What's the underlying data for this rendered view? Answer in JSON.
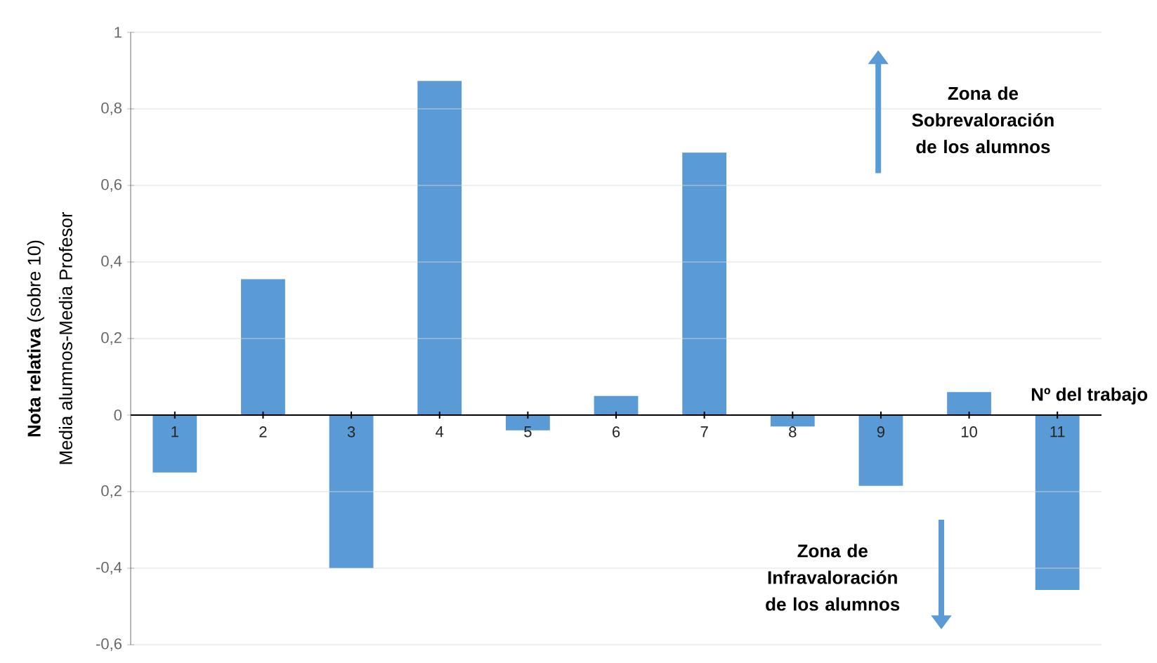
{
  "chart_data": {
    "type": "bar",
    "categories": [
      "1",
      "2",
      "3",
      "4",
      "5",
      "6",
      "7",
      "8",
      "9",
      "10",
      "11"
    ],
    "values": [
      -0.15,
      0.355,
      -0.4,
      0.873,
      -0.04,
      0.05,
      0.686,
      -0.03,
      -0.185,
      0.06,
      -0.457
    ],
    "color": "#5b9bd5",
    "xlabel": "Nº del trabajo",
    "ylabel": "**Nota relativa** (sobre 10)",
    "ylim": [
      -0.6,
      1
    ],
    "yticks": [
      {
        "value": -0.6,
        "label": "-0,6"
      },
      {
        "value": -0.4,
        "label": "-0,4"
      },
      {
        "value": -0.2,
        "label": "0,2"
      },
      {
        "value": 0,
        "label": "0"
      },
      {
        "value": 0.2,
        "label": "0,2"
      },
      {
        "value": 0.4,
        "label": "0,4"
      },
      {
        "value": 0.6,
        "label": "0,6"
      },
      {
        "value": 0.8,
        "label": "0,8"
      },
      {
        "value": 1,
        "label": "1"
      }
    ],
    "grid": "y",
    "annotations": [
      "Media alumnos-Media Profesor",
      "Zona de Sobrevaloración de los alumnos",
      "Zona de Infravaloración de los alumnos"
    ]
  }
}
